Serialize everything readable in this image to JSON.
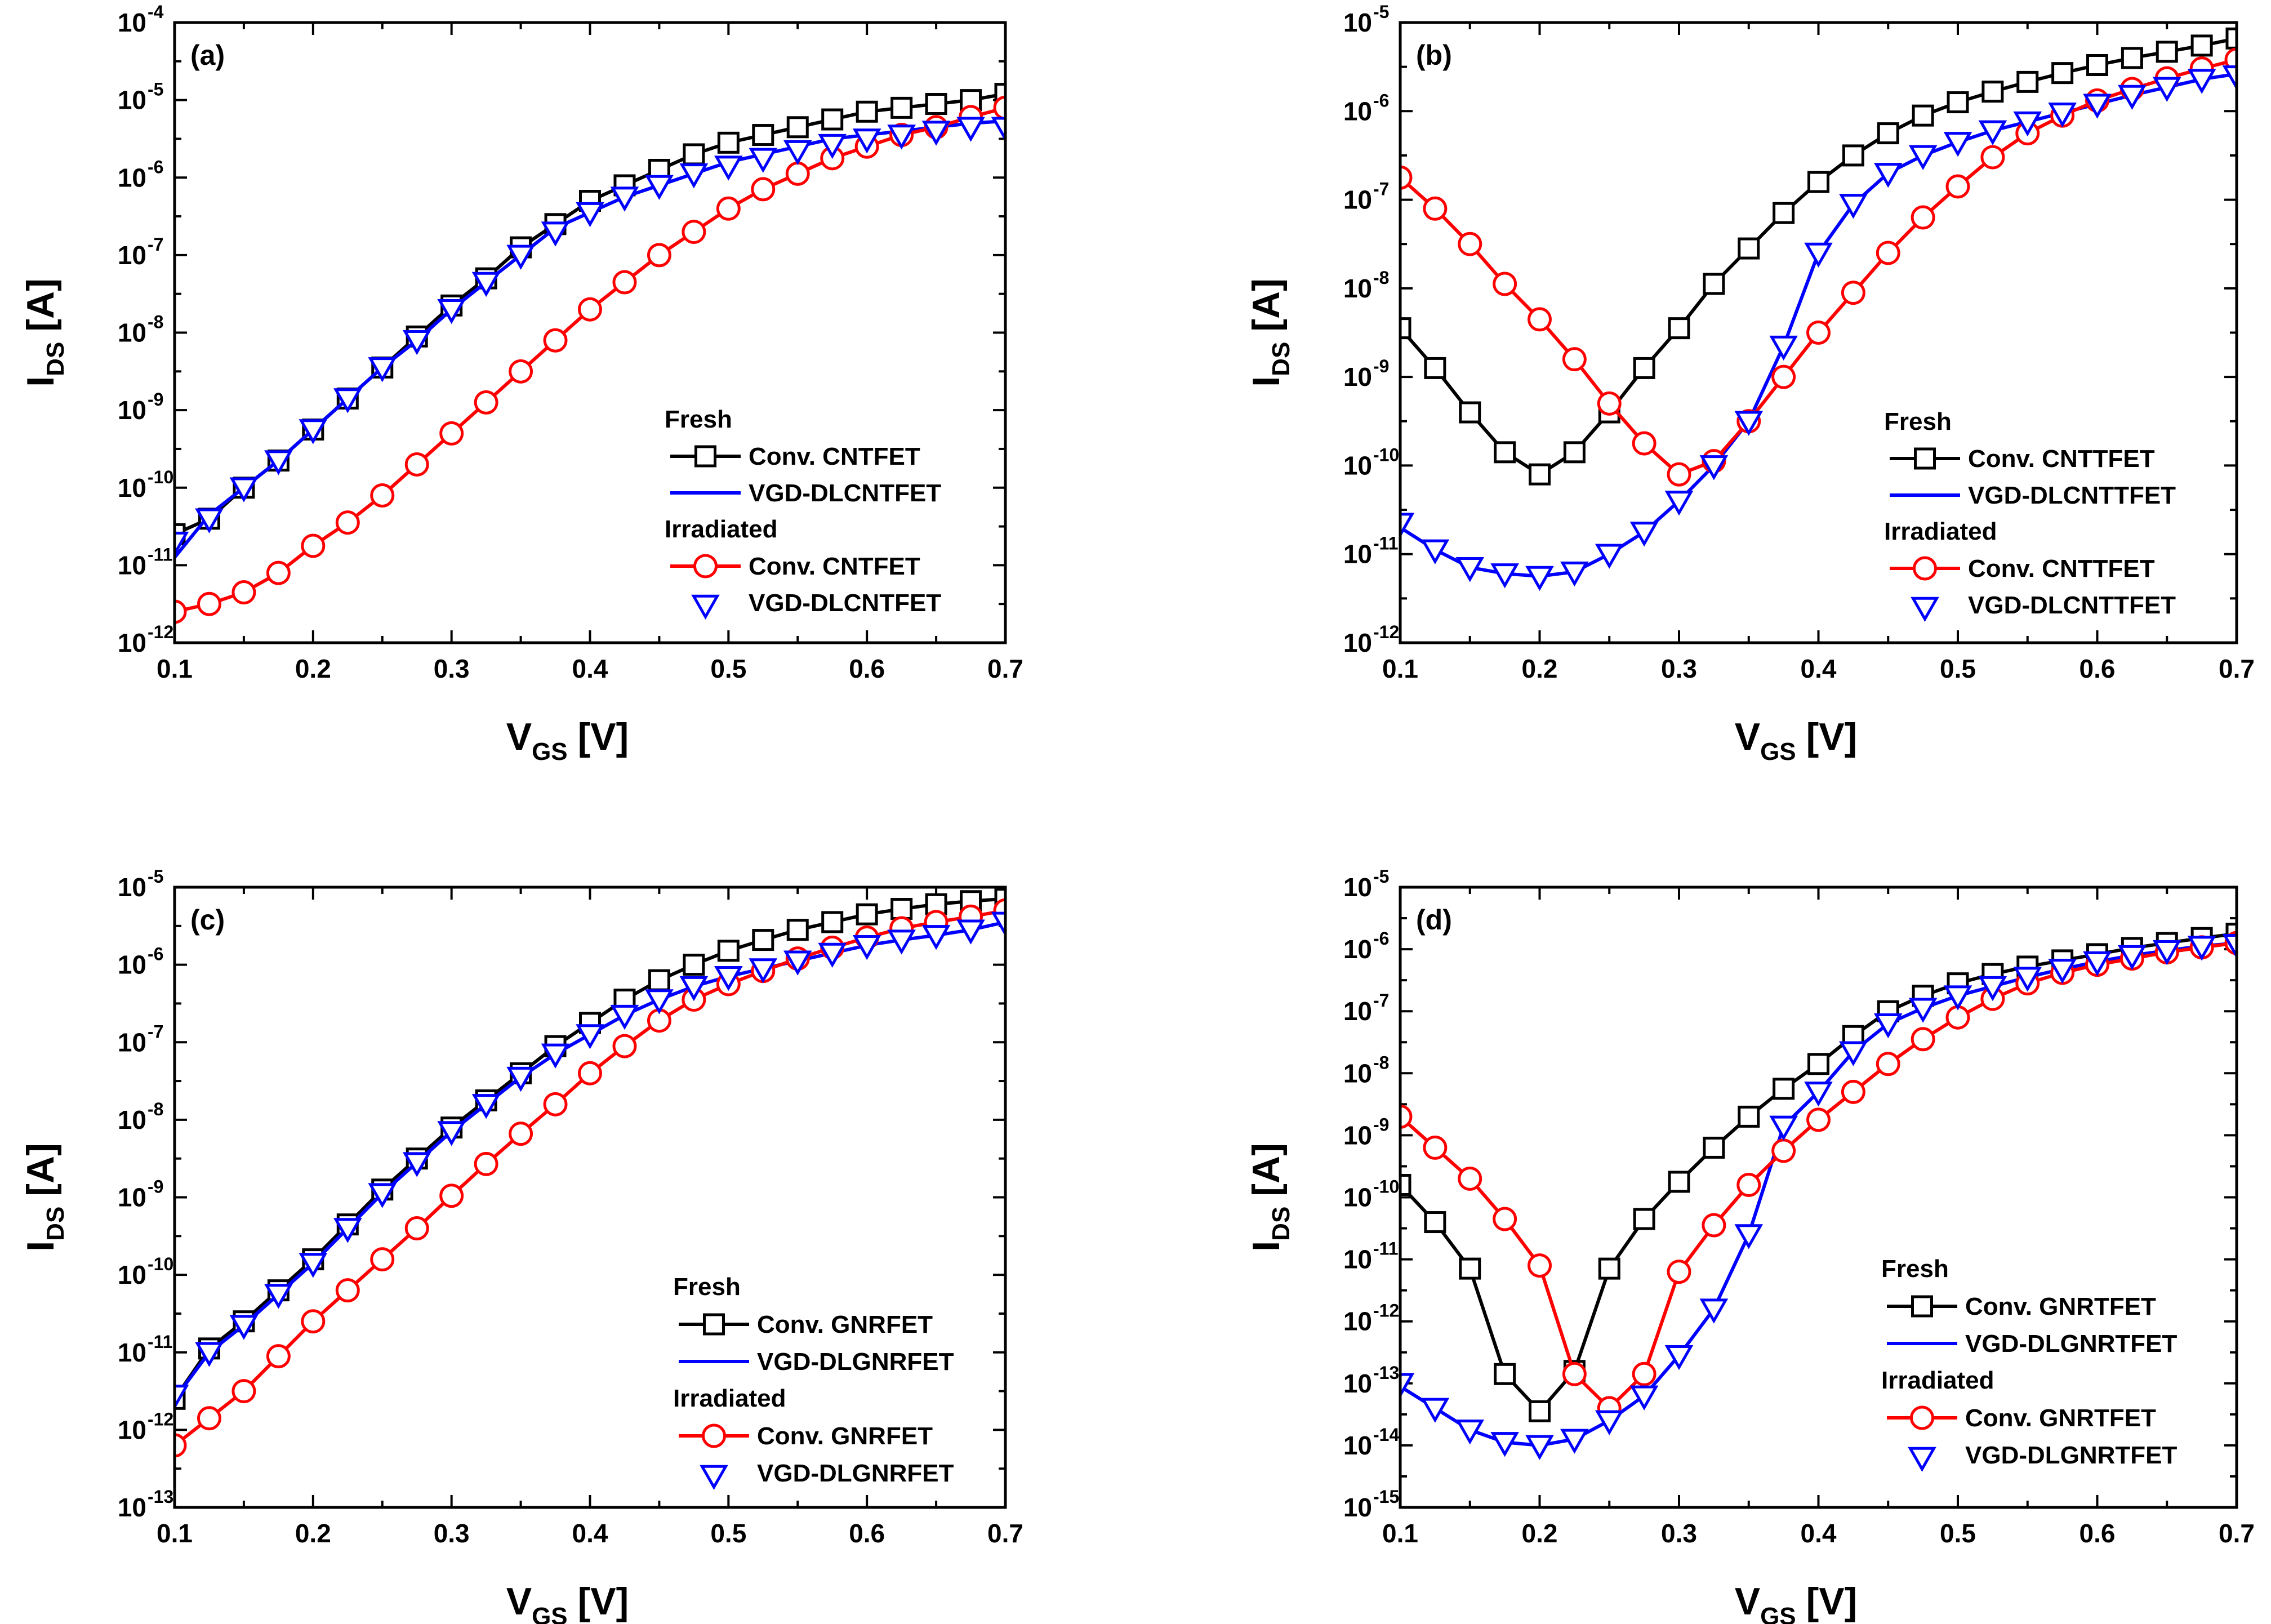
{
  "figure_title": "",
  "styles": {
    "fresh_conv": {
      "color": "#000000",
      "line": true,
      "marker": "square"
    },
    "fresh_vgd": {
      "color": "#0000ff",
      "line": true,
      "marker": "triangle-down"
    },
    "irr_conv": {
      "color": "#ff0000",
      "line": true,
      "marker": "circle"
    },
    "irr_vgd": {
      "color": "#0000ff",
      "line": false,
      "marker": "triangle-down"
    }
  },
  "chart_data": [
    {
      "id": "a",
      "panel_label": "(a)",
      "type": "line",
      "xlabel_main": "V",
      "xlabel_sub": "GS",
      "xlabel_unit": "[V]",
      "ylabel_main": "I",
      "ylabel_sub": "DS",
      "ylabel_unit": "[A]",
      "xlim": [
        0.1,
        0.7
      ],
      "ylim_log": [
        -12,
        -4
      ],
      "y_scale": "log",
      "xticks": [
        "0.1",
        "0.2",
        "0.3",
        "0.4",
        "0.5",
        "0.6",
        "0.7"
      ],
      "yticks": [
        {
          "base": "10",
          "exp": "-12"
        },
        {
          "base": "10",
          "exp": "-11"
        },
        {
          "base": "10",
          "exp": "-10"
        },
        {
          "base": "10",
          "exp": "-9"
        },
        {
          "base": "10",
          "exp": "-8"
        },
        {
          "base": "10",
          "exp": "-7"
        },
        {
          "base": "10",
          "exp": "-6"
        },
        {
          "base": "10",
          "exp": "-5"
        },
        {
          "base": "10",
          "exp": "-4"
        }
      ],
      "legend": {
        "fresh_header": "Fresh",
        "irradiated_header": "Irradiated",
        "conv_label": "Conv. CNTFET",
        "vgd_label": "VGD-DLCNTFET"
      },
      "x": [
        0.1,
        0.125,
        0.15,
        0.175,
        0.2,
        0.225,
        0.25,
        0.275,
        0.3,
        0.325,
        0.35,
        0.375,
        0.4,
        0.425,
        0.45,
        0.475,
        0.5,
        0.525,
        0.55,
        0.575,
        0.6,
        0.625,
        0.65,
        0.675,
        0.7
      ],
      "series": [
        {
          "name": "Fresh Conv. CNTFET",
          "style": "fresh_conv",
          "log10": [
            -10.6,
            -10.4,
            -10.0,
            -9.65,
            -9.25,
            -8.85,
            -8.45,
            -8.05,
            -7.65,
            -7.3,
            -6.9,
            -6.6,
            -6.3,
            -6.1,
            -5.9,
            -5.7,
            -5.55,
            -5.45,
            -5.35,
            -5.25,
            -5.15,
            -5.1,
            -5.05,
            -5.0,
            -4.92
          ]
        },
        {
          "name": "Fresh VGD-DLCNTFET",
          "style": "fresh_vgd",
          "log10": [
            -10.9,
            -10.35,
            -10.0,
            -9.65,
            -9.25,
            -8.85,
            -8.45,
            -8.1,
            -7.7,
            -7.35,
            -7.0,
            -6.65,
            -6.45,
            -6.25,
            -6.1,
            -5.95,
            -5.8,
            -5.7,
            -5.6,
            -5.5,
            -5.45,
            -5.4,
            -5.35,
            -5.3,
            -5.27
          ]
        },
        {
          "name": "Irradiated Conv. CNTFET",
          "style": "irr_conv",
          "log10": [
            -11.6,
            -11.5,
            -11.35,
            -11.1,
            -10.75,
            -10.45,
            -10.1,
            -9.7,
            -9.3,
            -8.9,
            -8.5,
            -8.1,
            -7.7,
            -7.35,
            -7.0,
            -6.7,
            -6.4,
            -6.15,
            -5.95,
            -5.75,
            -5.6,
            -5.45,
            -5.35,
            -5.22,
            -5.1
          ]
        },
        {
          "name": "Irradiated VGD-DLCNTFET",
          "style": "irr_vgd",
          "log10": [
            -10.7,
            -10.4,
            -10.0,
            -9.65,
            -9.25,
            -8.85,
            -8.45,
            -8.1,
            -7.7,
            -7.35,
            -7.0,
            -6.7,
            -6.45,
            -6.25,
            -6.1,
            -5.95,
            -5.85,
            -5.75,
            -5.65,
            -5.57,
            -5.5,
            -5.45,
            -5.4,
            -5.35,
            -5.35
          ]
        }
      ]
    },
    {
      "id": "b",
      "panel_label": "(b)",
      "type": "line",
      "xlabel_main": "V",
      "xlabel_sub": "GS",
      "xlabel_unit": "[V]",
      "ylabel_main": "I",
      "ylabel_sub": "DS",
      "ylabel_unit": "[A]",
      "xlim": [
        0.1,
        0.7
      ],
      "ylim_log": [
        -12,
        -5
      ],
      "y_scale": "log",
      "xticks": [
        "0.1",
        "0.2",
        "0.3",
        "0.4",
        "0.5",
        "0.6",
        "0.7"
      ],
      "yticks": [
        {
          "base": "10",
          "exp": "-12"
        },
        {
          "base": "10",
          "exp": "-11"
        },
        {
          "base": "10",
          "exp": "-10"
        },
        {
          "base": "10",
          "exp": "-9"
        },
        {
          "base": "10",
          "exp": "-8"
        },
        {
          "base": "10",
          "exp": "-7"
        },
        {
          "base": "10",
          "exp": "-6"
        },
        {
          "base": "10",
          "exp": "-5"
        }
      ],
      "legend": {
        "fresh_header": "Fresh",
        "irradiated_header": "Irradiated",
        "conv_label": "Conv. CNTTFET",
        "vgd_label": "VGD-DLCNTTFET"
      },
      "x": [
        0.1,
        0.125,
        0.15,
        0.175,
        0.2,
        0.225,
        0.25,
        0.275,
        0.3,
        0.325,
        0.35,
        0.375,
        0.4,
        0.425,
        0.45,
        0.475,
        0.5,
        0.525,
        0.55,
        0.575,
        0.6,
        0.625,
        0.65,
        0.675,
        0.7
      ],
      "series": [
        {
          "name": "Fresh Conv. CNTTFET",
          "style": "fresh_conv",
          "log10": [
            -8.45,
            -8.9,
            -9.4,
            -9.85,
            -10.1,
            -9.85,
            -9.4,
            -8.9,
            -8.45,
            -7.95,
            -7.55,
            -7.15,
            -6.8,
            -6.5,
            -6.25,
            -6.05,
            -5.9,
            -5.78,
            -5.67,
            -5.57,
            -5.48,
            -5.4,
            -5.33,
            -5.26,
            -5.18
          ]
        },
        {
          "name": "Fresh VGD-DLCNTTFET",
          "style": "fresh_vgd",
          "log10": [
            -10.7,
            -10.95,
            -11.15,
            -11.22,
            -11.25,
            -11.2,
            -11.0,
            -10.75,
            -10.4,
            -10.0,
            -9.5,
            -8.65,
            -7.6,
            -7.05,
            -6.7,
            -6.5,
            -6.35,
            -6.22,
            -6.12,
            -6.02,
            -5.92,
            -5.82,
            -5.73,
            -5.64,
            -5.58
          ]
        },
        {
          "name": "Irradiated Conv. CNTTFET",
          "style": "irr_conv",
          "log10": [
            -6.75,
            -7.1,
            -7.5,
            -7.95,
            -8.35,
            -8.8,
            -9.3,
            -9.75,
            -10.1,
            -9.95,
            -9.5,
            -9.0,
            -8.5,
            -8.05,
            -7.6,
            -7.2,
            -6.85,
            -6.52,
            -6.25,
            -6.05,
            -5.88,
            -5.75,
            -5.63,
            -5.52,
            -5.42
          ]
        },
        {
          "name": "Irradiated VGD-DLCNTTFET",
          "style": "irr_vgd",
          "log10": [
            -10.65,
            -10.95,
            -11.15,
            -11.22,
            -11.25,
            -11.2,
            -11.0,
            -10.75,
            -10.4,
            -10.0,
            -9.5,
            -8.65,
            -7.6,
            -7.05,
            -6.7,
            -6.5,
            -6.35,
            -6.22,
            -6.12,
            -6.02,
            -5.92,
            -5.82,
            -5.73,
            -5.64,
            -5.6
          ]
        }
      ]
    },
    {
      "id": "c",
      "panel_label": "(c)",
      "type": "line",
      "xlabel_main": "V",
      "xlabel_sub": "GS",
      "xlabel_unit": "[V]",
      "ylabel_main": "I",
      "ylabel_sub": "DS",
      "ylabel_unit": "[A]",
      "xlim": [
        0.1,
        0.7
      ],
      "ylim_log": [
        -13,
        -5
      ],
      "y_scale": "log",
      "xticks": [
        "0.1",
        "0.2",
        "0.3",
        "0.4",
        "0.5",
        "0.6",
        "0.7"
      ],
      "yticks": [
        {
          "base": "10",
          "exp": "-13"
        },
        {
          "base": "10",
          "exp": "-12"
        },
        {
          "base": "10",
          "exp": "-11"
        },
        {
          "base": "10",
          "exp": "-10"
        },
        {
          "base": "10",
          "exp": "-9"
        },
        {
          "base": "10",
          "exp": "-8"
        },
        {
          "base": "10",
          "exp": "-7"
        },
        {
          "base": "10",
          "exp": "-6"
        },
        {
          "base": "10",
          "exp": "-5"
        }
      ],
      "legend": {
        "fresh_header": "Fresh",
        "irradiated_header": "Irradiated",
        "conv_label": "Conv. GNRFET",
        "vgd_label": "VGD-DLGNRFET"
      },
      "x": [
        0.1,
        0.125,
        0.15,
        0.175,
        0.2,
        0.225,
        0.25,
        0.275,
        0.3,
        0.325,
        0.35,
        0.375,
        0.4,
        0.425,
        0.45,
        0.475,
        0.5,
        0.525,
        0.55,
        0.575,
        0.6,
        0.625,
        0.65,
        0.675,
        0.7
      ],
      "series": [
        {
          "name": "Fresh Conv. GNRFET",
          "style": "fresh_conv",
          "log10": [
            -11.6,
            -10.95,
            -10.6,
            -10.2,
            -9.8,
            -9.35,
            -8.9,
            -8.5,
            -8.1,
            -7.75,
            -7.4,
            -7.05,
            -6.75,
            -6.45,
            -6.2,
            -6.0,
            -5.82,
            -5.68,
            -5.55,
            -5.45,
            -5.35,
            -5.28,
            -5.22,
            -5.18,
            -5.15
          ]
        },
        {
          "name": "Fresh VGD-DLGNRFET",
          "style": "fresh_vgd",
          "log10": [
            -11.6,
            -11.0,
            -10.65,
            -10.25,
            -9.85,
            -9.4,
            -8.95,
            -8.55,
            -8.15,
            -7.8,
            -7.45,
            -7.15,
            -6.9,
            -6.65,
            -6.45,
            -6.28,
            -6.15,
            -6.05,
            -5.95,
            -5.85,
            -5.75,
            -5.68,
            -5.62,
            -5.55,
            -5.45
          ]
        },
        {
          "name": "Irradiated Conv. GNRFET",
          "style": "irr_conv",
          "log10": [
            -12.2,
            -11.85,
            -11.5,
            -11.05,
            -10.6,
            -10.2,
            -9.8,
            -9.4,
            -8.98,
            -8.57,
            -8.18,
            -7.8,
            -7.4,
            -7.05,
            -6.72,
            -6.45,
            -6.25,
            -6.08,
            -5.92,
            -5.78,
            -5.65,
            -5.53,
            -5.45,
            -5.38,
            -5.3
          ]
        },
        {
          "name": "Irradiated VGD-DLGNRFET",
          "style": "irr_vgd",
          "log10": [
            -11.55,
            -11.0,
            -10.65,
            -10.25,
            -9.85,
            -9.4,
            -8.95,
            -8.55,
            -8.15,
            -7.8,
            -7.45,
            -7.15,
            -6.9,
            -6.65,
            -6.45,
            -6.28,
            -6.15,
            -6.05,
            -5.95,
            -5.85,
            -5.75,
            -5.68,
            -5.62,
            -5.55,
            -5.45
          ]
        }
      ]
    },
    {
      "id": "d",
      "panel_label": "(d)",
      "type": "line",
      "xlabel_main": "V",
      "xlabel_sub": "GS",
      "xlabel_unit": "[V]",
      "ylabel_main": "I",
      "ylabel_sub": "DS",
      "ylabel_unit": "[A]",
      "xlim": [
        0.1,
        0.7
      ],
      "ylim_log": [
        -15,
        -5
      ],
      "y_scale": "log",
      "xticks": [
        "0.1",
        "0.2",
        "0.3",
        "0.4",
        "0.5",
        "0.6",
        "0.7"
      ],
      "yticks": [
        {
          "base": "10",
          "exp": "-15"
        },
        {
          "base": "10",
          "exp": "-14"
        },
        {
          "base": "10",
          "exp": "-13"
        },
        {
          "base": "10",
          "exp": "-12"
        },
        {
          "base": "10",
          "exp": "-11"
        },
        {
          "base": "10",
          "exp": "-10"
        },
        {
          "base": "10",
          "exp": "-9"
        },
        {
          "base": "10",
          "exp": "-8"
        },
        {
          "base": "10",
          "exp": "-7"
        },
        {
          "base": "10",
          "exp": "-6"
        },
        {
          "base": "10",
          "exp": "-5"
        }
      ],
      "legend": {
        "fresh_header": "Fresh",
        "irradiated_header": "Irradiated",
        "conv_label": "Conv. GNRTFET",
        "vgd_label": "VGD-DLGNRTFET"
      },
      "x": [
        0.1,
        0.125,
        0.15,
        0.175,
        0.2,
        0.225,
        0.25,
        0.275,
        0.3,
        0.325,
        0.35,
        0.375,
        0.4,
        0.425,
        0.45,
        0.475,
        0.5,
        0.525,
        0.55,
        0.575,
        0.6,
        0.625,
        0.65,
        0.675,
        0.7
      ],
      "series": [
        {
          "name": "Fresh Conv. GNRTFET",
          "style": "fresh_conv",
          "log10": [
            -9.8,
            -10.4,
            -11.15,
            -12.85,
            -13.45,
            -12.8,
            -11.15,
            -10.35,
            -9.75,
            -9.2,
            -8.7,
            -8.25,
            -7.85,
            -7.4,
            -7.0,
            -6.75,
            -6.55,
            -6.4,
            -6.28,
            -6.18,
            -6.08,
            -5.98,
            -5.9,
            -5.82,
            -5.75
          ]
        },
        {
          "name": "Fresh VGD-DLGNRTFET",
          "style": "fresh_vgd",
          "log10": [
            -13.05,
            -13.4,
            -13.75,
            -13.95,
            -14.0,
            -13.9,
            -13.6,
            -13.2,
            -12.55,
            -11.8,
            -10.6,
            -8.85,
            -8.3,
            -7.65,
            -7.2,
            -6.95,
            -6.75,
            -6.6,
            -6.45,
            -6.32,
            -6.2,
            -6.1,
            -6.02,
            -5.95,
            -5.9
          ]
        },
        {
          "name": "Irradiated Conv. GNRTFET",
          "style": "irr_conv",
          "log10": [
            -8.7,
            -9.2,
            -9.7,
            -10.35,
            -11.1,
            -12.85,
            -13.4,
            -12.85,
            -11.2,
            -10.45,
            -9.8,
            -9.25,
            -8.75,
            -8.3,
            -7.85,
            -7.45,
            -7.1,
            -6.8,
            -6.55,
            -6.38,
            -6.25,
            -6.15,
            -6.05,
            -5.97,
            -5.9
          ]
        },
        {
          "name": "Irradiated VGD-DLGNRTFET",
          "style": "irr_vgd",
          "log10": [
            -13.0,
            -13.4,
            -13.75,
            -13.95,
            -14.0,
            -13.9,
            -13.6,
            -13.2,
            -12.55,
            -11.8,
            -10.6,
            -8.85,
            -8.3,
            -7.65,
            -7.2,
            -6.95,
            -6.75,
            -6.6,
            -6.45,
            -6.32,
            -6.2,
            -6.1,
            -6.02,
            -5.95,
            -5.92
          ]
        }
      ]
    }
  ]
}
